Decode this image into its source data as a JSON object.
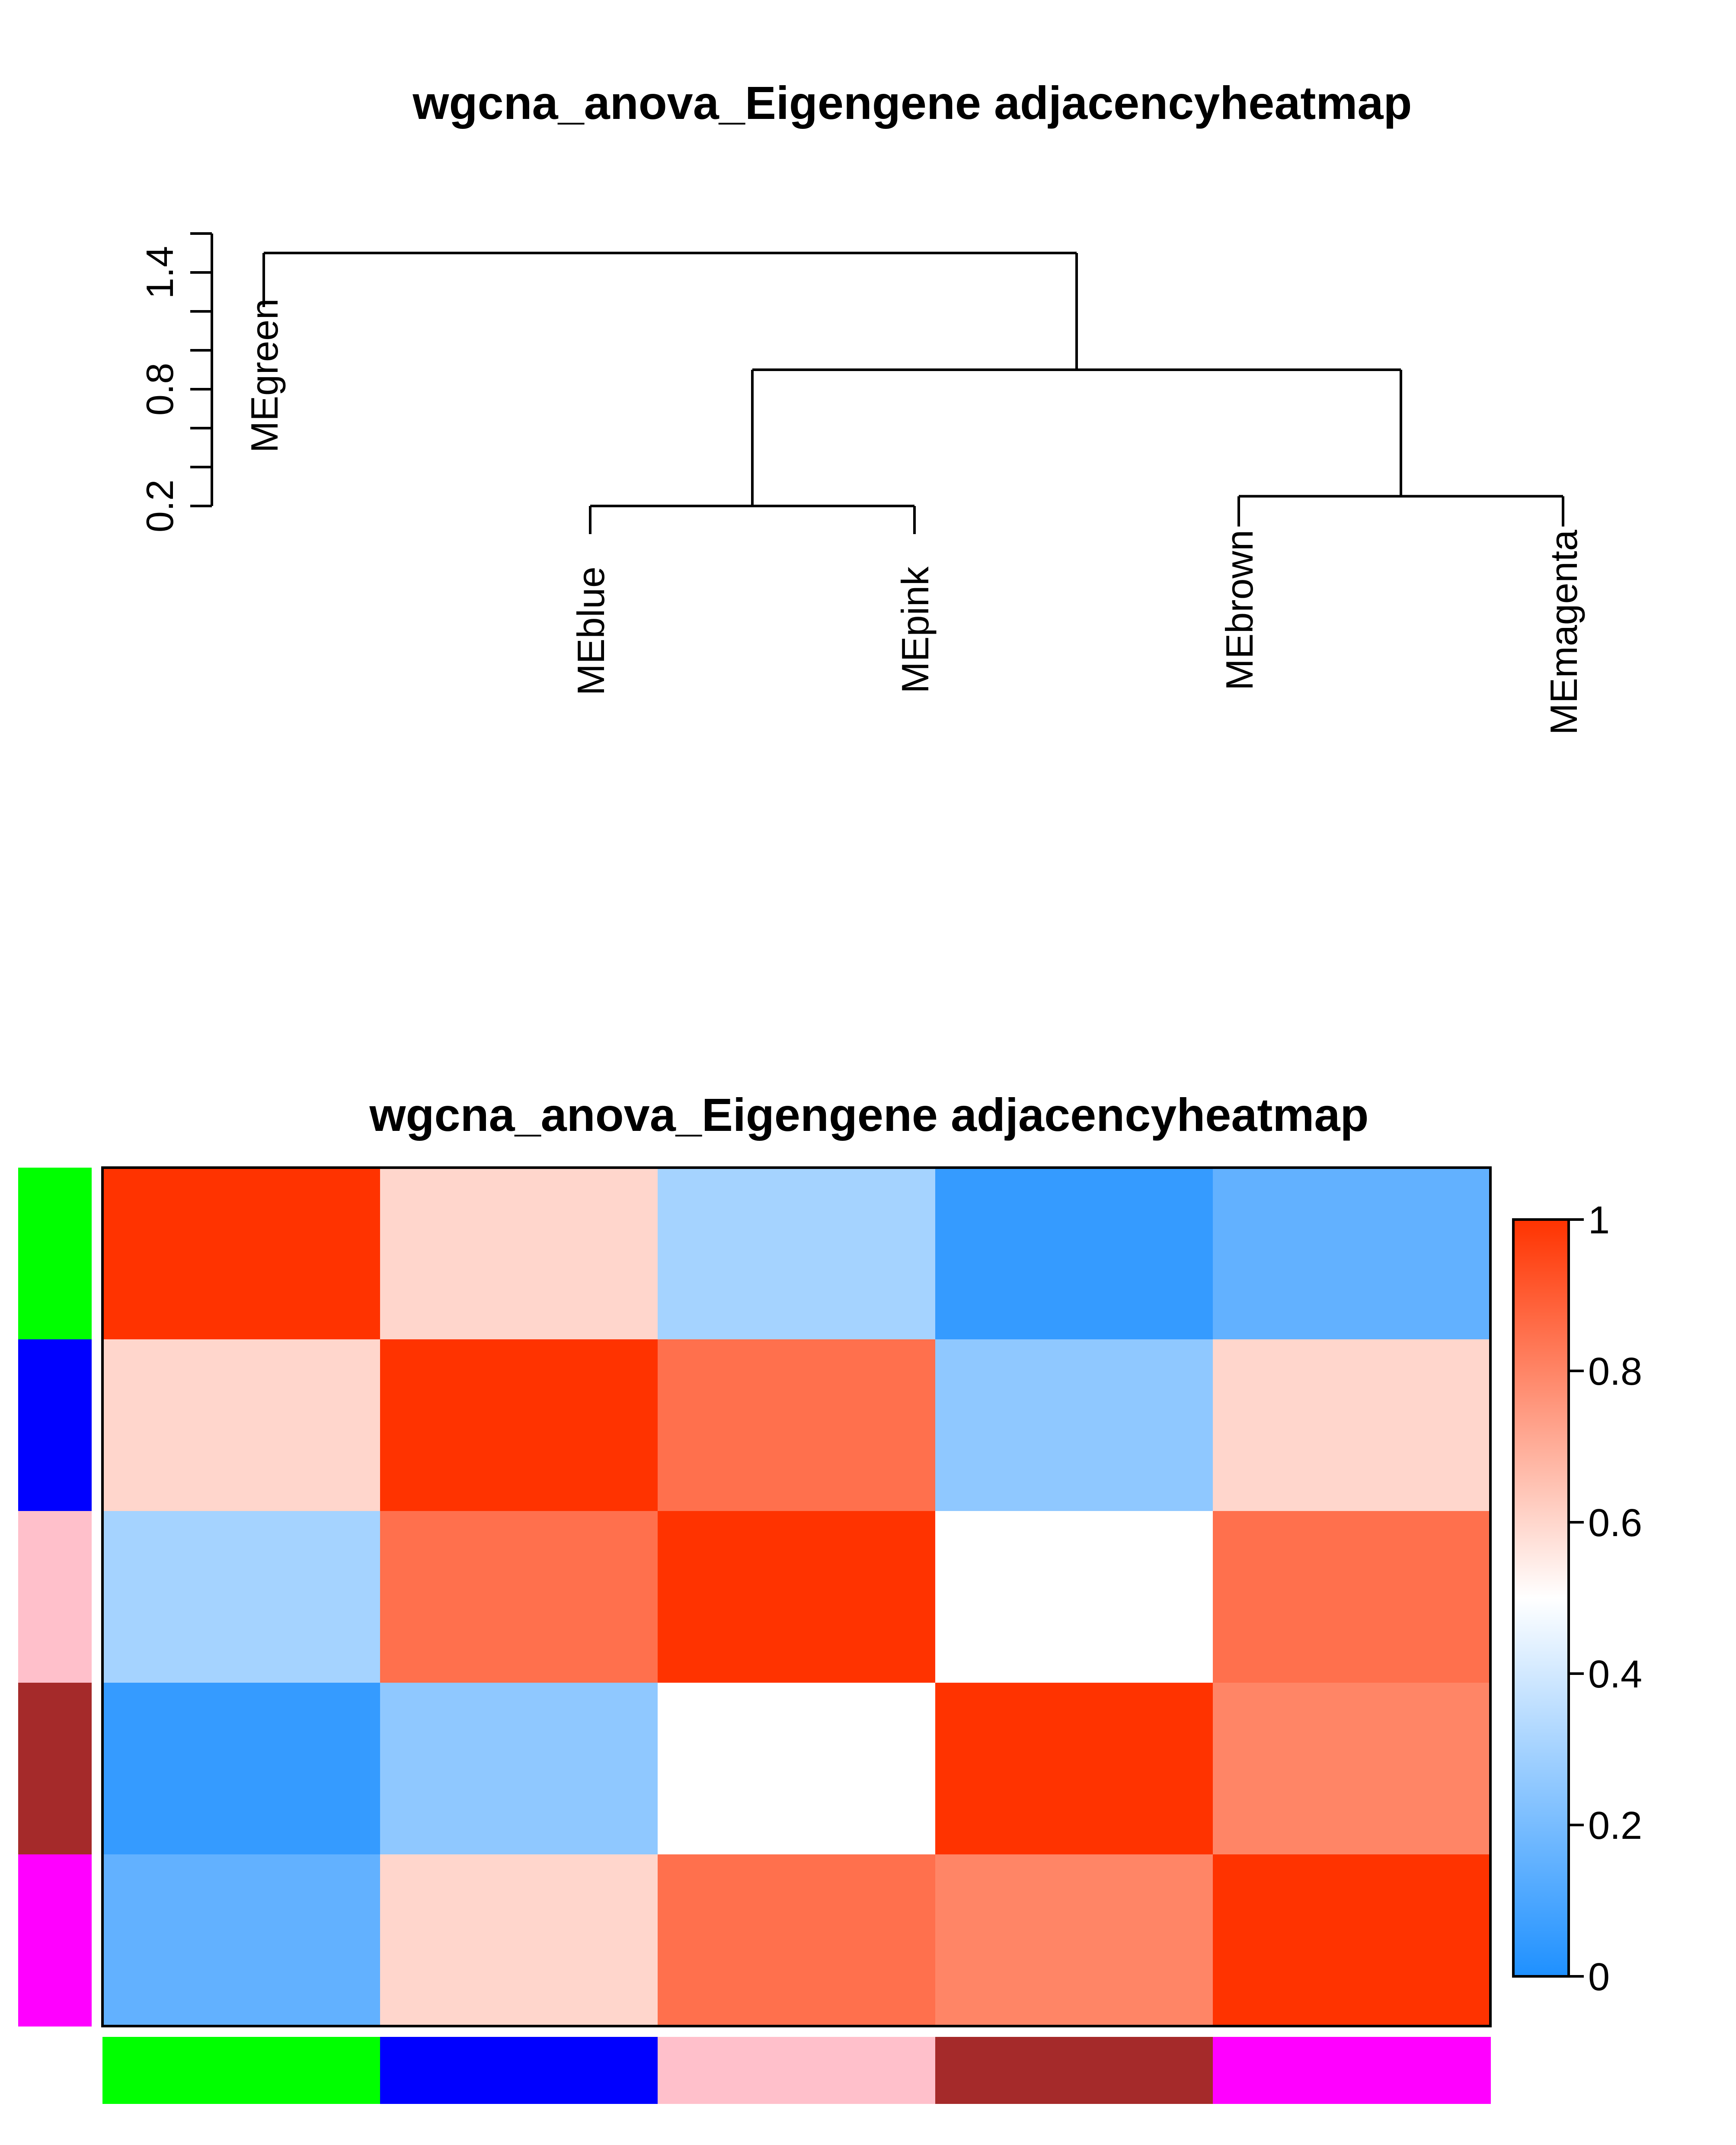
{
  "chart_data": [
    {
      "type": "dendrogram",
      "title": "wgcna_anova_Eigengene adjacencyheatmap",
      "yticks": [
        0.2,
        0.8,
        1.4
      ],
      "ylim": [
        0.2,
        1.6
      ],
      "leaves": [
        "MEgreen",
        "MEblue",
        "MEpink",
        "MEbrown",
        "MEmagenta"
      ],
      "merges": [
        {
          "members": [
            "MEblue",
            "MEpink"
          ],
          "height": 0.2
        },
        {
          "members": [
            "MEbrown",
            "MEmagenta"
          ],
          "height": 0.25
        },
        {
          "members": [
            "MEblue+MEpink",
            "MEbrown+MEmagenta"
          ],
          "height": 0.9
        },
        {
          "members": [
            "MEgreen",
            "rest"
          ],
          "height": 1.5
        }
      ],
      "leaf_tips": [
        1.2,
        0.2,
        0.2,
        0.25,
        0.25
      ]
    },
    {
      "type": "heatmap",
      "title": "wgcna_anova_Eigengene adjacencyheatmap",
      "rows": [
        "MEgreen",
        "MEblue",
        "MEpink",
        "MEbrown",
        "MEmagenta"
      ],
      "columns": [
        "MEgreen",
        "MEblue",
        "MEpink",
        "MEbrown",
        "MEmagenta"
      ],
      "row_colors": [
        "#00ff00",
        "#0000ff",
        "#ffc0cb",
        "#a52a2a",
        "#ff00ff"
      ],
      "values": [
        [
          1.0,
          0.6,
          0.3,
          0.05,
          0.15
        ],
        [
          0.6,
          1.0,
          0.85,
          0.25,
          0.6
        ],
        [
          0.3,
          0.85,
          1.0,
          0.5,
          0.85
        ],
        [
          0.05,
          0.25,
          0.5,
          1.0,
          0.8
        ],
        [
          0.15,
          0.6,
          0.85,
          0.8,
          1.0
        ]
      ],
      "colorbar": {
        "range": [
          0,
          1
        ],
        "ticks": [
          "0",
          "0.2",
          "0.4",
          "0.6",
          "0.8",
          "1"
        ],
        "low_color": "#1e90ff",
        "mid_color": "#ffffff",
        "high_color": "#ff3300"
      }
    }
  ]
}
